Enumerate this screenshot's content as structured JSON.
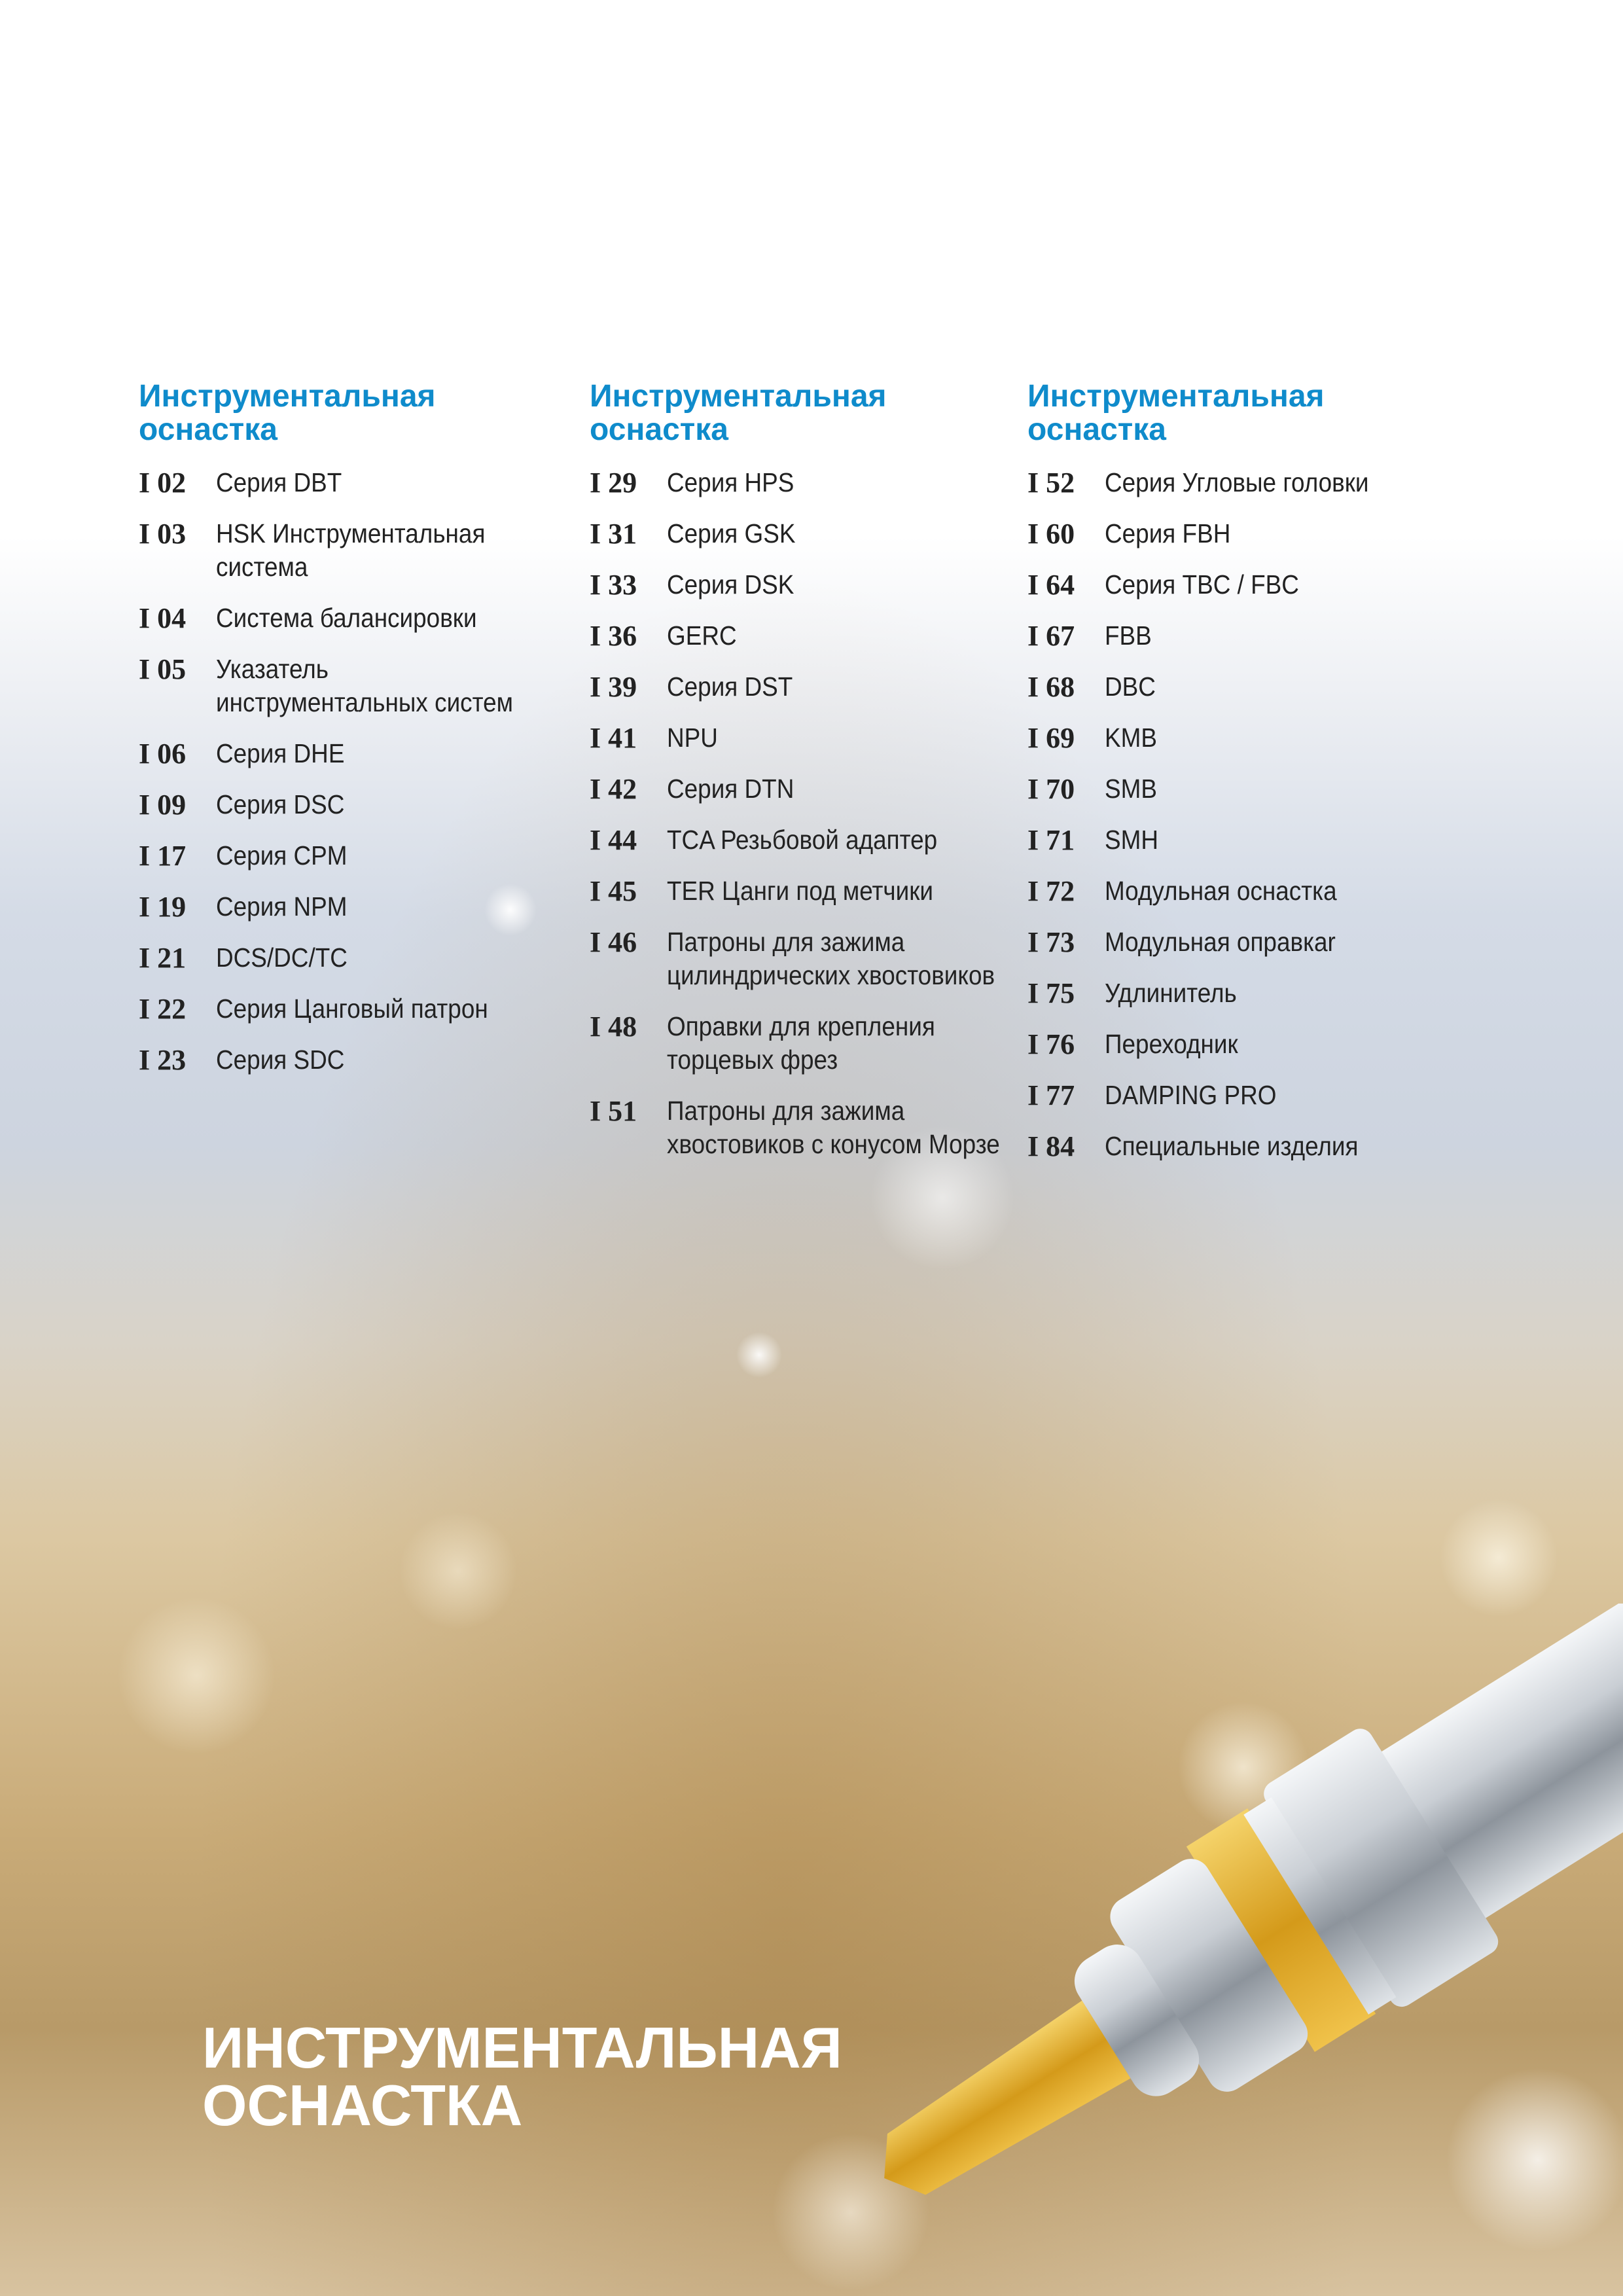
{
  "columns": [
    {
      "heading": [
        "Инструментальная",
        "оснастка"
      ],
      "entries": [
        {
          "code": "I 02",
          "lines": [
            "Серия DBT"
          ]
        },
        {
          "code": "I 03",
          "lines": [
            "HSK Инструментальная",
            "система"
          ]
        },
        {
          "code": "I 04",
          "lines": [
            "Система балансировки"
          ]
        },
        {
          "code": "I 05",
          "lines": [
            "Указатель",
            "инструментальных систем"
          ]
        },
        {
          "code": "I 06",
          "lines": [
            "Серия DHE"
          ]
        },
        {
          "code": "I 09",
          "lines": [
            "Серия DSC"
          ]
        },
        {
          "code": "I 17",
          "lines": [
            "Серия CPM"
          ]
        },
        {
          "code": "I 19",
          "lines": [
            "Серия NPM"
          ]
        },
        {
          "code": "I 21",
          "lines": [
            "DCS/DC/TC"
          ]
        },
        {
          "code": "I 22",
          "lines": [
            "Серия Цанговый патрон"
          ]
        },
        {
          "code": "I 23",
          "lines": [
            "Серия SDC"
          ]
        }
      ]
    },
    {
      "heading": [
        "Инструментальная",
        "оснастка"
      ],
      "entries": [
        {
          "code": "I 29",
          "lines": [
            "Серия HPS"
          ]
        },
        {
          "code": "I 31",
          "lines": [
            "Серия GSK"
          ]
        },
        {
          "code": "I 33",
          "lines": [
            "Серия DSK"
          ]
        },
        {
          "code": "I 36",
          "lines": [
            "GERC"
          ]
        },
        {
          "code": "I 39",
          "lines": [
            "Серия DST"
          ]
        },
        {
          "code": "I 41",
          "lines": [
            "NPU"
          ]
        },
        {
          "code": "I 42",
          "lines": [
            "Серия DTN"
          ]
        },
        {
          "code": "I 44",
          "lines": [
            "TCA Резьбовой адаптер"
          ]
        },
        {
          "code": "I 45",
          "lines": [
            "TER Цанги под метчики"
          ]
        },
        {
          "code": "I 46",
          "lines": [
            "Патроны для зажима",
            "цилиндрических хвостовиков"
          ]
        },
        {
          "code": "I 48",
          "lines": [
            "Оправки для крепления",
            "торцевых фрез"
          ]
        },
        {
          "code": "I 51",
          "lines": [
            "Патроны для зажима",
            "хвостовиков с конусом Морзе"
          ]
        }
      ]
    },
    {
      "heading": [
        "Инструментальная",
        "оснастка"
      ],
      "entries": [
        {
          "code": "I 52",
          "lines": [
            "Серия Угловые головки"
          ]
        },
        {
          "code": "I 60",
          "lines": [
            "Серия FBH"
          ]
        },
        {
          "code": "I 64",
          "lines": [
            "Серия TBC / FBC"
          ]
        },
        {
          "code": "I 67",
          "lines": [
            "FBB"
          ]
        },
        {
          "code": "I 68",
          "lines": [
            "DBC"
          ]
        },
        {
          "code": "I 69",
          "lines": [
            "KMB"
          ]
        },
        {
          "code": "I 70",
          "lines": [
            "SMB"
          ]
        },
        {
          "code": "I 71",
          "lines": [
            "SMH"
          ]
        },
        {
          "code": "I 72",
          "lines": [
            "Модульная оснастка"
          ]
        },
        {
          "code": "I 73",
          "lines": [
            "Модульная оправкаr"
          ]
        },
        {
          "code": "I 75",
          "lines": [
            "Удлинитель"
          ]
        },
        {
          "code": "I 76",
          "lines": [
            "Переходник"
          ]
        },
        {
          "code": "I 77",
          "lines": [
            "DAMPING PRO"
          ]
        },
        {
          "code": "I 84",
          "lines": [
            "Специальные изделия"
          ]
        }
      ]
    }
  ],
  "title": [
    "ИНСТРУМЕНТАЛЬНАЯ",
    "ОСНАСТКА"
  ]
}
